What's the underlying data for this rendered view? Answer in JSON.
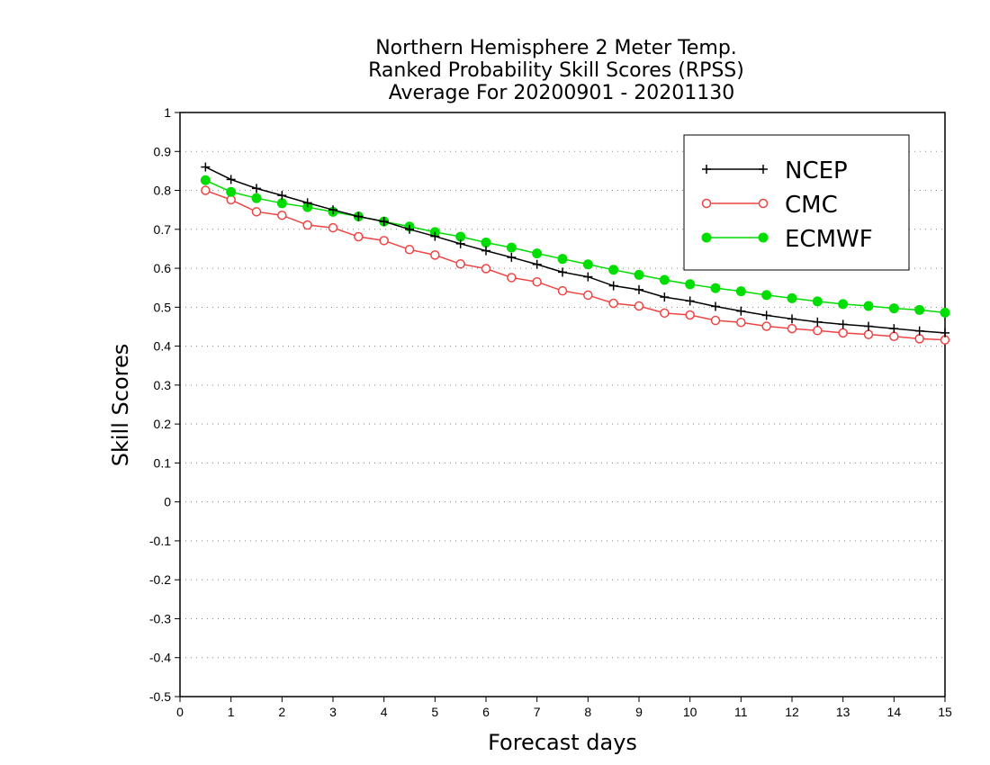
{
  "chart_data": {
    "type": "line",
    "title_lines": [
      "Northern Hemisphere 2 Meter Temp.",
      "Ranked Probability Skill Scores (RPSS)",
      "Average For 20200901 - 20201130"
    ],
    "xlabel": "Forecast days",
    "ylabel": "Skill Scores",
    "xlim": [
      0,
      15
    ],
    "ylim": [
      -0.5,
      1
    ],
    "xticks": [
      0,
      1,
      2,
      3,
      4,
      5,
      6,
      7,
      8,
      9,
      10,
      11,
      12,
      13,
      14,
      15
    ],
    "yticks": [
      -0.5,
      -0.4,
      -0.3,
      -0.2,
      -0.1,
      0,
      0.1,
      0.2,
      0.3,
      0.4,
      0.5,
      0.6,
      0.7,
      0.8,
      0.9,
      1
    ],
    "grid": "horizontal dotted",
    "legend_position": "top-right",
    "x": [
      0.5,
      1,
      1.5,
      2,
      2.5,
      3,
      3.5,
      4,
      4.5,
      5,
      5.5,
      6,
      6.5,
      7,
      7.5,
      8,
      8.5,
      9,
      9.5,
      10,
      10.5,
      11,
      11.5,
      12,
      12.5,
      13,
      13.5,
      14,
      14.5,
      15
    ],
    "series": [
      {
        "name": "NCEP",
        "color": "#000000",
        "marker": "plus",
        "values": [
          0.86,
          0.828,
          0.805,
          0.787,
          0.768,
          0.75,
          0.733,
          0.72,
          0.7,
          0.682,
          0.663,
          0.645,
          0.628,
          0.61,
          0.59,
          0.578,
          0.555,
          0.545,
          0.526,
          0.516,
          0.502,
          0.49,
          0.479,
          0.47,
          0.462,
          0.456,
          0.451,
          0.445,
          0.439,
          0.434
        ]
      },
      {
        "name": "CMC",
        "color": "#ee4444",
        "marker": "open-circle",
        "values": [
          0.8,
          0.776,
          0.745,
          0.736,
          0.711,
          0.704,
          0.681,
          0.671,
          0.648,
          0.634,
          0.611,
          0.599,
          0.576,
          0.565,
          0.542,
          0.531,
          0.51,
          0.503,
          0.485,
          0.48,
          0.466,
          0.461,
          0.451,
          0.445,
          0.44,
          0.434,
          0.43,
          0.425,
          0.419,
          0.416
        ]
      },
      {
        "name": "ECMWF",
        "color": "#00dd00",
        "marker": "filled-circle",
        "values": [
          0.826,
          0.796,
          0.78,
          0.767,
          0.757,
          0.745,
          0.733,
          0.72,
          0.707,
          0.693,
          0.681,
          0.666,
          0.653,
          0.638,
          0.624,
          0.61,
          0.596,
          0.583,
          0.57,
          0.559,
          0.549,
          0.541,
          0.531,
          0.523,
          0.515,
          0.508,
          0.503,
          0.497,
          0.493,
          0.486
        ]
      }
    ]
  }
}
